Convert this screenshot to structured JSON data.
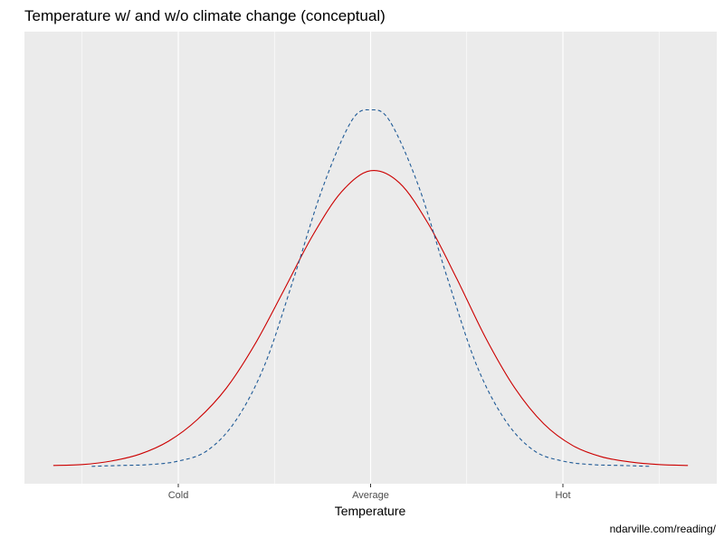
{
  "chart_data": {
    "type": "line",
    "title": "Temperature w/ and w/o climate change (conceptual)",
    "xlabel": "Temperature",
    "ylabel": "",
    "caption": "ndarville.com/reading/",
    "x_tick_values": [
      -2,
      0,
      2
    ],
    "x_tick_labels": [
      "Cold",
      "Average",
      "Hot"
    ],
    "xlim": [
      -3.6,
      3.6
    ],
    "ylim": [
      -0.02,
      0.5
    ],
    "y_axis_shown": false,
    "grid": true,
    "legend": "none",
    "series": [
      {
        "color": "#cc0000",
        "line_style": "solid",
        "x": [
          -3.3,
          -3.0,
          -2.7,
          -2.4,
          -2.1,
          -1.8,
          -1.5,
          -1.2,
          -0.9,
          -0.6,
          -0.3,
          0.0,
          0.3,
          0.6,
          0.9,
          1.2,
          1.5,
          1.8,
          2.1,
          2.4,
          2.7,
          3.0,
          3.3
        ],
        "y": [
          0.001,
          0.002,
          0.006,
          0.014,
          0.029,
          0.054,
          0.09,
          0.141,
          0.203,
          0.266,
          0.316,
          0.34,
          0.326,
          0.279,
          0.215,
          0.147,
          0.09,
          0.049,
          0.024,
          0.011,
          0.005,
          0.002,
          0.001
        ]
      },
      {
        "color": "#1f5a96",
        "line_style": "dashed",
        "x": [
          -2.9,
          -2.6,
          -2.3,
          -2.0,
          -1.7,
          -1.4,
          -1.1,
          -0.8,
          -0.5,
          -0.2,
          0.0,
          0.2,
          0.5,
          0.8,
          1.1,
          1.4,
          1.7,
          2.0,
          2.3,
          2.6,
          2.9
        ],
        "y": [
          0.0,
          0.001,
          0.002,
          0.006,
          0.018,
          0.053,
          0.117,
          0.216,
          0.32,
          0.397,
          0.41,
          0.397,
          0.322,
          0.216,
          0.117,
          0.053,
          0.018,
          0.006,
          0.002,
          0.001,
          0.0
        ]
      }
    ]
  },
  "colors": {
    "panel_background": "#ebebeb",
    "gridline": "#ffffff",
    "tick_label": "#4d4d4d",
    "text": "#000000"
  }
}
